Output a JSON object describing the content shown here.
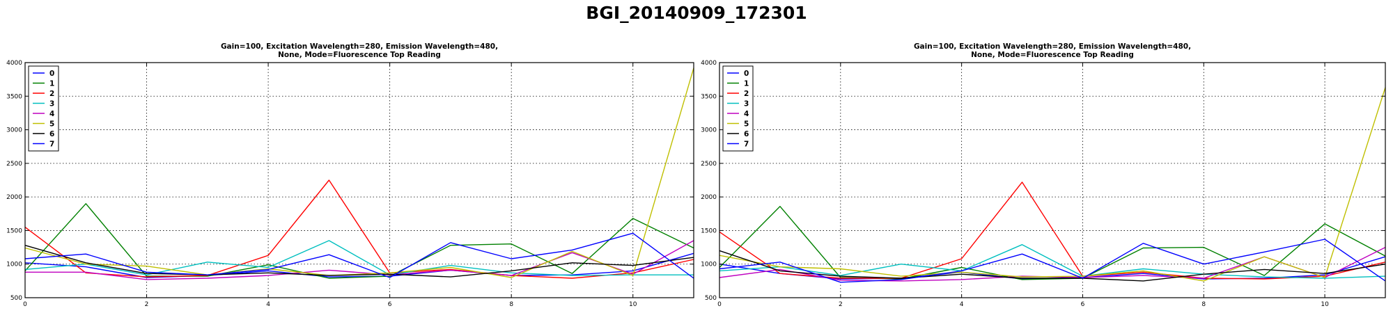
{
  "figure_title": "BGI_20140909_172301",
  "colors": [
    "#0000ff",
    "#008000",
    "#ff0000",
    "#00bfbf",
    "#bf00bf",
    "#bfbf00",
    "#000000",
    "#0000ff"
  ],
  "chart_data": [
    {
      "type": "line",
      "title_lines": [
        "Gain=100, Excitation Wavelength=280, Emission Wavelength=480,",
        "None, Mode=Fluorescence Top Reading"
      ],
      "xlabel": "",
      "ylabel": "",
      "xlim": [
        0,
        11
      ],
      "ylim": [
        500,
        4000
      ],
      "xticks": [
        0,
        2,
        4,
        6,
        8,
        10
      ],
      "yticks": [
        500,
        1000,
        1500,
        2000,
        2500,
        3000,
        3500,
        4000
      ],
      "grid": true,
      "legend_position": "upper left",
      "x": [
        0,
        1,
        2,
        3,
        4,
        5,
        6,
        7,
        8,
        9,
        10,
        11
      ],
      "series": [
        {
          "name": "0",
          "values": [
            1020,
            960,
            800,
            830,
            900,
            810,
            820,
            910,
            830,
            840,
            900,
            1160
          ]
        },
        {
          "name": "1",
          "values": [
            900,
            1900,
            820,
            820,
            990,
            790,
            820,
            1280,
            1300,
            860,
            1680,
            1240
          ]
        },
        {
          "name": "2",
          "values": [
            1550,
            870,
            810,
            830,
            1130,
            2250,
            870,
            920,
            830,
            790,
            870,
            1070
          ]
        },
        {
          "name": "3",
          "values": [
            920,
            1000,
            840,
            1030,
            950,
            1350,
            840,
            980,
            870,
            830,
            840,
            840
          ]
        },
        {
          "name": "4",
          "values": [
            880,
            880,
            770,
            790,
            830,
            910,
            840,
            910,
            830,
            1170,
            850,
            1350
          ]
        },
        {
          "name": "5",
          "values": [
            1240,
            1000,
            970,
            840,
            930,
            830,
            870,
            950,
            800,
            1190,
            830,
            3920
          ]
        },
        {
          "name": "6",
          "values": [
            1280,
            1020,
            860,
            840,
            870,
            830,
            850,
            810,
            900,
            1020,
            980,
            1100
          ]
        },
        {
          "name": "7",
          "values": [
            1080,
            1150,
            880,
            840,
            920,
            1140,
            800,
            1320,
            1080,
            1210,
            1460,
            790
          ]
        }
      ]
    },
    {
      "type": "line",
      "title_lines": [
        "Gain=100, Excitation Wavelength=280, Emission Wavelength=480,",
        "None, Mode=Fluorescence Top Reading"
      ],
      "xlabel": "",
      "ylabel": "",
      "xlim": [
        0,
        11
      ],
      "ylim": [
        500,
        4000
      ],
      "xticks": [
        0,
        2,
        4,
        6,
        8,
        10
      ],
      "yticks": [
        500,
        1000,
        1500,
        2000,
        2500,
        3000,
        3500,
        4000
      ],
      "grid": true,
      "legend_position": "upper left",
      "x": [
        0,
        1,
        2,
        3,
        4,
        5,
        6,
        7,
        8,
        9,
        10,
        11
      ],
      "series": [
        {
          "name": "0",
          "values": [
            1000,
            860,
            780,
            790,
            880,
            780,
            800,
            860,
            780,
            790,
            840,
            1110
          ]
        },
        {
          "name": "1",
          "values": [
            950,
            1860,
            800,
            780,
            950,
            770,
            790,
            1240,
            1250,
            830,
            1600,
            1120
          ]
        },
        {
          "name": "2",
          "values": [
            1480,
            860,
            790,
            790,
            1080,
            2220,
            820,
            880,
            790,
            780,
            820,
            1030
          ]
        },
        {
          "name": "3",
          "values": [
            900,
            960,
            830,
            1000,
            900,
            1290,
            820,
            930,
            850,
            810,
            790,
            820
          ]
        },
        {
          "name": "4",
          "values": [
            800,
            920,
            760,
            750,
            770,
            820,
            800,
            830,
            790,
            1110,
            800,
            1250
          ]
        },
        {
          "name": "5",
          "values": [
            1130,
            960,
            930,
            820,
            880,
            810,
            820,
            900,
            750,
            1110,
            800,
            3630
          ]
        },
        {
          "name": "6",
          "values": [
            1200,
            900,
            820,
            790,
            850,
            790,
            790,
            750,
            850,
            920,
            860,
            1000
          ]
        },
        {
          "name": "7",
          "values": [
            930,
            1030,
            730,
            770,
            900,
            1150,
            790,
            1310,
            1000,
            1180,
            1370,
            750
          ]
        }
      ]
    }
  ]
}
